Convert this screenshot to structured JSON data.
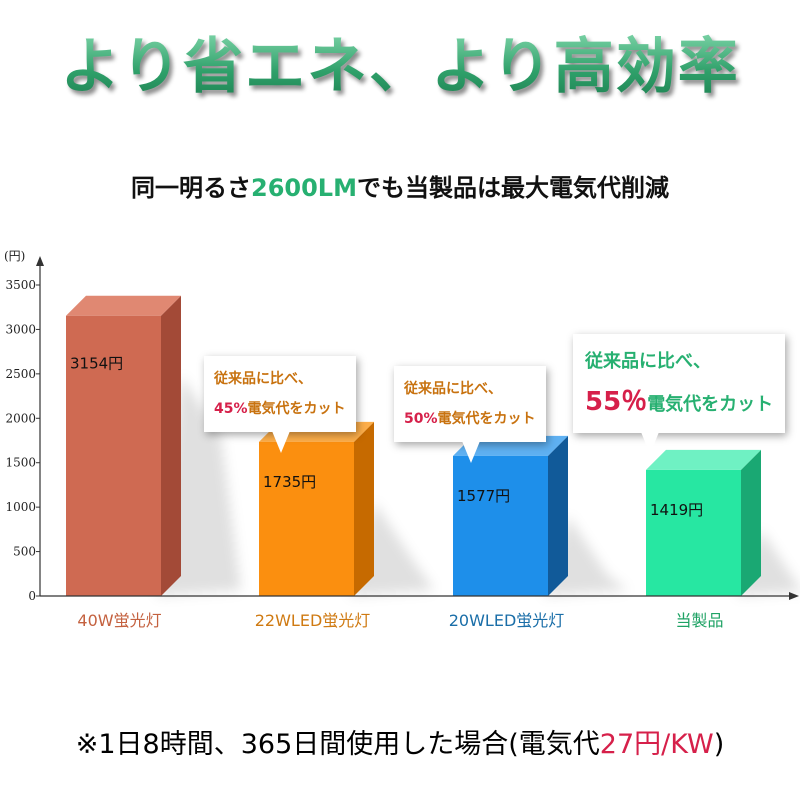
{
  "header": {
    "title": "より省エネ、より高効率",
    "subtitle_pre": "同一明るさ",
    "subtitle_highlight": "2600LM",
    "subtitle_post": "でも当製品は最大電気代削減"
  },
  "chart_data": {
    "type": "bar",
    "unit_label": "(円)",
    "ylim": [
      0,
      3500
    ],
    "yticks": [
      0,
      500,
      1000,
      1500,
      2000,
      2500,
      3000,
      3500
    ],
    "categories": [
      "40W蛍光灯",
      "22WLED蛍光灯",
      "20WLED蛍光灯",
      "当製品"
    ],
    "values": [
      3154,
      1735,
      1577,
      1419
    ],
    "value_labels": [
      "3154円",
      "1735円",
      "1577円",
      "1419円"
    ],
    "colors": {
      "front": [
        "#cf6a52",
        "#fb8f0f",
        "#1e8fea",
        "#27e7a2"
      ],
      "side": [
        "#a34a37",
        "#c66a00",
        "#115a99",
        "#1aa873"
      ],
      "top": [
        "#e08872",
        "#fdae4a",
        "#5fb1f2",
        "#6ff1c3"
      ],
      "category_text": [
        "#c4613f",
        "#cf7a12",
        "#1a6ea8",
        "#1ea264"
      ]
    }
  },
  "callouts": [
    {
      "line1": "従来品に比べ、",
      "pct": "45%",
      "rest": "電気代をカット"
    },
    {
      "line1": "従来品に比べ、",
      "pct": "50%",
      "rest": "電気代をカット"
    },
    {
      "line1": "従来品に比べ、",
      "pct": "55％",
      "rest": "電気代をカット"
    }
  ],
  "footnote": {
    "pre": "※1日8時間、365日間使用した場合(電気代",
    "highlight": "27円/KW",
    "post": ")"
  }
}
